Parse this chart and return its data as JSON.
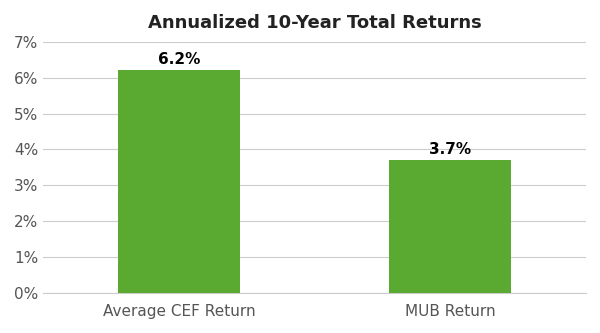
{
  "title": "Annualized 10-Year Total Returns",
  "categories": [
    "Average CEF Return",
    "MUB Return"
  ],
  "values": [
    0.062,
    0.037
  ],
  "labels": [
    "6.2%",
    "3.7%"
  ],
  "bar_color": "#5aaa32",
  "bar_width": 0.45,
  "ylim": [
    0,
    0.07
  ],
  "yticks": [
    0.0,
    0.01,
    0.02,
    0.03,
    0.04,
    0.05,
    0.06,
    0.07
  ],
  "ytick_labels": [
    "0%",
    "1%",
    "2%",
    "3%",
    "4%",
    "5%",
    "6%",
    "7%"
  ],
  "title_fontsize": 13,
  "label_fontsize": 11,
  "tick_fontsize": 11,
  "background_color": "#ffffff",
  "grid_color": "#cccccc",
  "bar_edge_color": "none"
}
